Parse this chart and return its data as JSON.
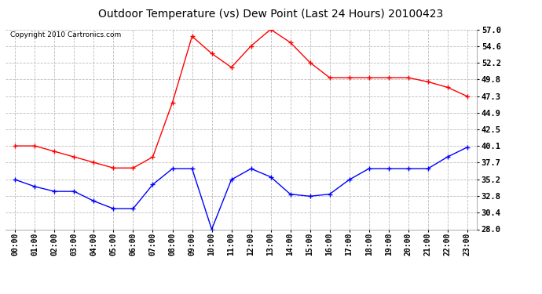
{
  "title": "Outdoor Temperature (vs) Dew Point (Last 24 Hours) 20100423",
  "copyright": "Copyright 2010 Cartronics.com",
  "hours": [
    "00:00",
    "01:00",
    "02:00",
    "03:00",
    "04:00",
    "05:00",
    "06:00",
    "07:00",
    "08:00",
    "09:00",
    "10:00",
    "11:00",
    "12:00",
    "13:00",
    "14:00",
    "15:00",
    "16:00",
    "17:00",
    "18:00",
    "19:00",
    "20:00",
    "21:00",
    "22:00",
    "23:00"
  ],
  "temp_red": [
    40.1,
    40.1,
    39.3,
    38.5,
    37.7,
    36.9,
    36.9,
    38.5,
    46.4,
    56.0,
    53.5,
    51.5,
    54.6,
    57.0,
    55.1,
    52.2,
    50.0,
    50.0,
    50.0,
    50.0,
    50.0,
    49.4,
    48.6,
    47.3
  ],
  "dew_blue": [
    35.2,
    34.2,
    33.5,
    33.5,
    32.1,
    31.0,
    31.0,
    34.5,
    36.8,
    36.8,
    28.0,
    35.2,
    36.8,
    35.6,
    33.1,
    32.8,
    33.1,
    35.2,
    36.8,
    36.8,
    36.8,
    36.8,
    38.5,
    39.9
  ],
  "ylim": [
    28.0,
    57.0
  ],
  "yticks": [
    28.0,
    30.4,
    32.8,
    35.2,
    37.7,
    40.1,
    42.5,
    44.9,
    47.3,
    49.8,
    52.2,
    54.6,
    57.0
  ],
  "line_color_red": "#ff0000",
  "line_color_blue": "#0000ff",
  "bg_color": "#ffffff",
  "plot_bg_color": "#ffffff",
  "grid_color": "#bbbbbb",
  "title_color": "#000000",
  "title_fontsize": 10,
  "copyright_fontsize": 6.5,
  "tick_fontsize": 7,
  "ytick_fontsize": 7.5
}
